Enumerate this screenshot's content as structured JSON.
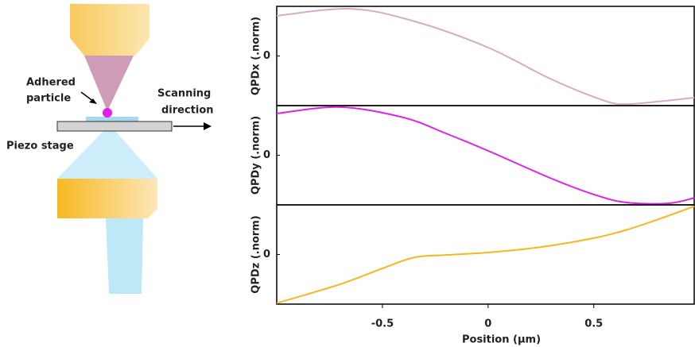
{
  "diagram": {
    "labels": {
      "particle": [
        "Adhered",
        "particle"
      ],
      "direction": [
        "Scanning",
        "direction"
      ],
      "stage": "Piezo stage"
    }
  },
  "chart_data": [
    {
      "type": "line",
      "ylabel": "QPDx (.norm)",
      "color": "#d6aac8",
      "x": [
        -1,
        -0.65,
        -0.35,
        0,
        0.3,
        0.55,
        0.65,
        0.8,
        0.975
      ],
      "values": [
        0.81,
        0.95,
        0.7,
        0.17,
        -0.47,
        -0.9,
        -0.97,
        -0.92,
        -0.84
      ],
      "xlim": [
        -1,
        0.975
      ],
      "ylim": [
        -1,
        1
      ],
      "yticks": [
        0
      ]
    },
    {
      "type": "line",
      "ylabel": "QPDy (.norm)",
      "color": "#e020e6",
      "x": [
        -1,
        -0.7,
        -0.4,
        -0.2,
        0,
        0.3,
        0.5,
        0.65,
        0.85,
        0.975
      ],
      "values": [
        0.84,
        0.97,
        0.76,
        0.44,
        0.09,
        -0.47,
        -0.79,
        -0.95,
        -0.97,
        -0.86
      ],
      "xlim": [
        -1,
        0.975
      ],
      "ylim": [
        -1,
        1
      ],
      "yticks": [
        0
      ]
    },
    {
      "type": "line",
      "ylabel": "QPDz (.norm)",
      "color": "#f5b820",
      "x": [
        -1,
        -0.7,
        -0.5,
        -0.35,
        -0.2,
        0,
        0.25,
        0.5,
        0.65,
        0.8,
        0.975
      ],
      "values": [
        -0.98,
        -0.6,
        -0.28,
        -0.06,
        -0.01,
        0.04,
        0.15,
        0.33,
        0.49,
        0.7,
        0.97
      ],
      "xlim": [
        -1,
        0.975
      ],
      "ylim": [
        -1,
        1
      ],
      "yticks": [
        0
      ],
      "xticks": [
        -0.5,
        0,
        0.5
      ],
      "xlabel": "Position (μm)"
    }
  ]
}
